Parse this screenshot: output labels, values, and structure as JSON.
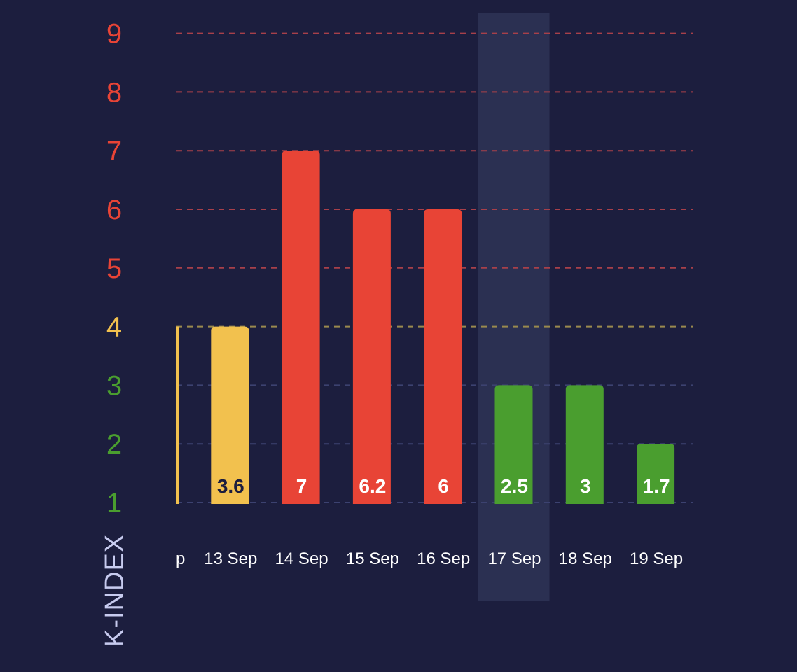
{
  "chart_data": {
    "type": "bar",
    "ylabel": "K-INDEX",
    "yticks": [
      "1",
      "2",
      "3",
      "4",
      "5",
      "6",
      "7",
      "8",
      "9"
    ],
    "ylim": [
      1,
      9
    ],
    "categories": [
      "p",
      "13 Sep",
      "14 Sep",
      "15 Sep",
      "16 Sep",
      "17 Sep",
      "18 Sep",
      "19 Sep"
    ],
    "bar_heights": [
      4,
      4,
      7,
      6,
      6,
      3,
      3,
      2
    ],
    "value_labels": [
      "",
      "3.6",
      "7",
      "6.2",
      "6",
      "2.5",
      "3",
      "1.7"
    ],
    "highlighted_category": "17 Sep",
    "colors": {
      "background": "#1c1e3e",
      "highlight_band": "#2b3052",
      "low": "#4a9e2f",
      "moderate": "#f2c14e",
      "high": "#e84436",
      "grid_low": "#3c4270",
      "grid_moderate": "#9a8a4e",
      "grid_high": "#a8404a",
      "ytick_low": "#4a9e2f",
      "ytick_moderate": "#f2c14e",
      "ytick_high": "#e84436",
      "label_dark": "#1c1e3e",
      "label_light": "#ffffff"
    }
  }
}
